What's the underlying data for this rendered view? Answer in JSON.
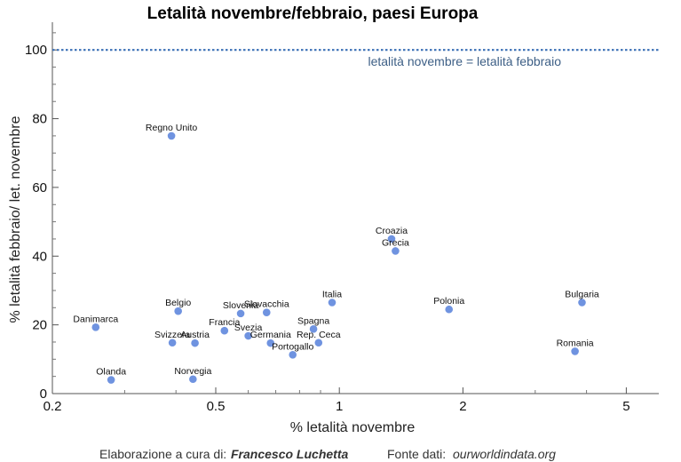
{
  "chart_data": {
    "type": "scatter",
    "title": "Letalità novembre/febbraio, paesi Europa",
    "xlabel": "% letalità novembre",
    "ylabel": "% letalità febbraio/ let. novembre",
    "x_scale": "log",
    "xlim": [
      0.2,
      6
    ],
    "ylim": [
      0,
      106
    ],
    "x_ticks": [
      0.2,
      0.5,
      1,
      2,
      5
    ],
    "x_tick_labels": [
      "0.2",
      "0.5",
      "1",
      "2",
      "5"
    ],
    "y_ticks": [
      0,
      20,
      40,
      60,
      80,
      100
    ],
    "y_tick_labels": [
      "0",
      "20",
      "40",
      "60",
      "80",
      "100"
    ],
    "reference_line": {
      "y": 100,
      "label": "letalità novembre = letalità febbraio"
    },
    "point_color": "#6f93e0",
    "points": [
      {
        "label": "Regno Unito",
        "x": 0.39,
        "y": 75
      },
      {
        "label": "Croazia",
        "x": 1.34,
        "y": 45
      },
      {
        "label": "Grecia",
        "x": 1.37,
        "y": 41.5
      },
      {
        "label": "Bulgaria",
        "x": 3.9,
        "y": 26.5
      },
      {
        "label": "Italia",
        "x": 0.96,
        "y": 26.5
      },
      {
        "label": "Polonia",
        "x": 1.85,
        "y": 24.5
      },
      {
        "label": "Belgio",
        "x": 0.405,
        "y": 24
      },
      {
        "label": "Slovenia",
        "x": 0.575,
        "y": 23.3
      },
      {
        "label": "Slovacchia",
        "x": 0.665,
        "y": 23.6
      },
      {
        "label": "Danimarca",
        "x": 0.255,
        "y": 19.3
      },
      {
        "label": "Spagna",
        "x": 0.865,
        "y": 18.8
      },
      {
        "label": "Francia",
        "x": 0.525,
        "y": 18.3
      },
      {
        "label": "Svezia",
        "x": 0.6,
        "y": 16.8
      },
      {
        "label": "Svizzera",
        "x": 0.392,
        "y": 14.8
      },
      {
        "label": "Austria",
        "x": 0.445,
        "y": 14.7
      },
      {
        "label": "Germania",
        "x": 0.68,
        "y": 14.7
      },
      {
        "label": "Rep. Ceca",
        "x": 0.89,
        "y": 14.8
      },
      {
        "label": "Romania",
        "x": 3.75,
        "y": 12.3
      },
      {
        "label": "Portogallo",
        "x": 0.77,
        "y": 11.3
      },
      {
        "label": "Olanda",
        "x": 0.278,
        "y": 4
      },
      {
        "label": "Norvegia",
        "x": 0.44,
        "y": 4.2
      }
    ]
  },
  "footer": {
    "credit_label": "Elaborazione a cura di:",
    "author": "Francesco Luchetta",
    "source_label": "Fonte dati:",
    "source": "ourworldindata.org"
  }
}
